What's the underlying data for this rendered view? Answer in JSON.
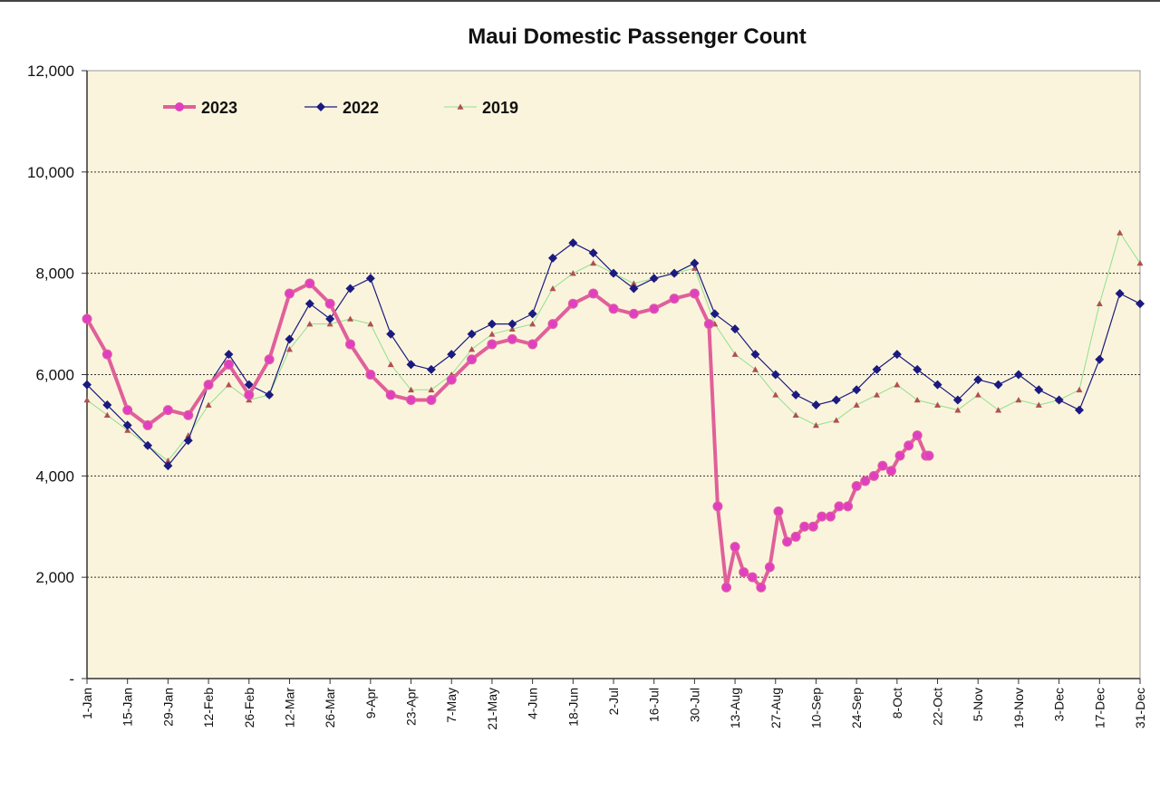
{
  "chart_data": {
    "type": "line",
    "title": "Maui Domestic Passenger Count",
    "xlabel": "",
    "ylabel": "",
    "ylim": [
      0,
      12000
    ],
    "grid": true,
    "legend_position": "top-left",
    "y_ticks": [
      {
        "value": 0,
        "label": "-"
      },
      {
        "value": 2000,
        "label": "2,000"
      },
      {
        "value": 4000,
        "label": "4,000"
      },
      {
        "value": 6000,
        "label": "6,000"
      },
      {
        "value": 8000,
        "label": "8,000"
      },
      {
        "value": 10000,
        "label": "10,000"
      },
      {
        "value": 12000,
        "label": "12,000"
      }
    ],
    "x_ticks": [
      {
        "day": 1,
        "label": "1-Jan"
      },
      {
        "day": 15,
        "label": "15-Jan"
      },
      {
        "day": 29,
        "label": "29-Jan"
      },
      {
        "day": 43,
        "label": "12-Feb"
      },
      {
        "day": 57,
        "label": "26-Feb"
      },
      {
        "day": 71,
        "label": "12-Mar"
      },
      {
        "day": 85,
        "label": "26-Mar"
      },
      {
        "day": 99,
        "label": "9-Apr"
      },
      {
        "day": 113,
        "label": "23-Apr"
      },
      {
        "day": 127,
        "label": "7-May"
      },
      {
        "day": 141,
        "label": "21-May"
      },
      {
        "day": 155,
        "label": "4-Jun"
      },
      {
        "day": 169,
        "label": "18-Jun"
      },
      {
        "day": 183,
        "label": "2-Jul"
      },
      {
        "day": 197,
        "label": "16-Jul"
      },
      {
        "day": 211,
        "label": "30-Jul"
      },
      {
        "day": 225,
        "label": "13-Aug"
      },
      {
        "day": 239,
        "label": "27-Aug"
      },
      {
        "day": 253,
        "label": "10-Sep"
      },
      {
        "day": 267,
        "label": "24-Sep"
      },
      {
        "day": 281,
        "label": "8-Oct"
      },
      {
        "day": 295,
        "label": "22-Oct"
      },
      {
        "day": 309,
        "label": "5-Nov"
      },
      {
        "day": 323,
        "label": "19-Nov"
      },
      {
        "day": 337,
        "label": "3-Dec"
      },
      {
        "day": 351,
        "label": "17-Dec"
      },
      {
        "day": 365,
        "label": "31-Dec"
      }
    ],
    "series": [
      {
        "name": "2023",
        "color": "#e0609a",
        "marker": "circle",
        "x": [
          1,
          8,
          15,
          22,
          29,
          36,
          43,
          50,
          57,
          64,
          71,
          78,
          85,
          92,
          99,
          106,
          113,
          120,
          127,
          134,
          141,
          148,
          155,
          162,
          169,
          176,
          183,
          190,
          197,
          204,
          211,
          216,
          219,
          222,
          225,
          228,
          231,
          234,
          237,
          240,
          243,
          246,
          249,
          252,
          255,
          258,
          261,
          264,
          267,
          270,
          273,
          276,
          279,
          282,
          285,
          288,
          291,
          292
        ],
        "values": [
          7100,
          6400,
          5300,
          5000,
          5300,
          5200,
          5800,
          6200,
          5600,
          6300,
          7600,
          7800,
          7400,
          6600,
          6000,
          5600,
          5500,
          5500,
          5900,
          6300,
          6600,
          6700,
          6600,
          7000,
          7400,
          7600,
          7300,
          7200,
          7300,
          7500,
          7600,
          7000,
          3400,
          1800,
          2600,
          2100,
          2000,
          1800,
          2200,
          3300,
          2700,
          2800,
          3000,
          3000,
          3200,
          3200,
          3400,
          3400,
          3800,
          3900,
          4000,
          4200,
          4100,
          4400,
          4600,
          4800,
          4400,
          4400
        ]
      },
      {
        "name": "2022",
        "color": "#1a1a80",
        "marker": "diamond",
        "x": [
          1,
          8,
          15,
          22,
          29,
          36,
          43,
          50,
          57,
          64,
          71,
          78,
          85,
          92,
          99,
          106,
          113,
          120,
          127,
          134,
          141,
          148,
          155,
          162,
          169,
          176,
          183,
          190,
          197,
          204,
          211,
          218,
          225,
          232,
          239,
          246,
          253,
          260,
          267,
          274,
          281,
          288,
          295,
          302,
          309,
          316,
          323,
          330,
          337,
          344,
          351,
          358,
          365
        ],
        "values": [
          5800,
          5400,
          5000,
          4600,
          4200,
          4700,
          5800,
          6400,
          5800,
          5600,
          6700,
          7400,
          7100,
          7700,
          7900,
          6800,
          6200,
          6100,
          6400,
          6800,
          7000,
          7000,
          7200,
          8300,
          8600,
          8400,
          8000,
          7700,
          7900,
          8000,
          8200,
          7200,
          6900,
          6400,
          6000,
          5600,
          5400,
          5500,
          5700,
          6100,
          6400,
          6100,
          5800,
          5500,
          5900,
          5800,
          6000,
          5700,
          5500,
          5300,
          6300,
          7600,
          7400
        ]
      },
      {
        "name": "2019",
        "color": "#8ee08e",
        "marker": "triangle",
        "x": [
          1,
          8,
          15,
          22,
          29,
          36,
          43,
          50,
          57,
          64,
          71,
          78,
          85,
          92,
          99,
          106,
          113,
          120,
          127,
          134,
          141,
          148,
          155,
          162,
          169,
          176,
          183,
          190,
          197,
          204,
          211,
          218,
          225,
          232,
          239,
          246,
          253,
          260,
          267,
          274,
          281,
          288,
          295,
          302,
          309,
          316,
          323,
          330,
          337,
          344,
          351,
          358,
          365
        ],
        "values": [
          5500,
          5200,
          4900,
          4600,
          4300,
          4800,
          5400,
          5800,
          5500,
          5600,
          6500,
          7000,
          7000,
          7100,
          7000,
          6200,
          5700,
          5700,
          6000,
          6500,
          6800,
          6900,
          7000,
          7700,
          8000,
          8200,
          8000,
          7800,
          7900,
          8000,
          8100,
          7000,
          6400,
          6100,
          5600,
          5200,
          5000,
          5100,
          5400,
          5600,
          5800,
          5500,
          5400,
          5300,
          5600,
          5300,
          5500,
          5400,
          5500,
          5700,
          7400,
          8800,
          8200
        ]
      }
    ]
  }
}
